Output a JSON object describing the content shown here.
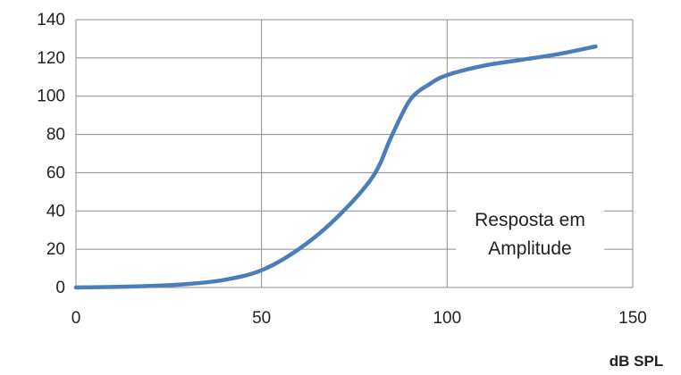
{
  "chart_data": {
    "type": "line",
    "title": "",
    "xlabel": "dB SPL",
    "ylabel": "",
    "xlim": [
      0,
      150
    ],
    "ylim": [
      0,
      140
    ],
    "x_ticks": [
      0,
      50,
      100,
      150
    ],
    "y_ticks": [
      0,
      20,
      40,
      60,
      80,
      100,
      120,
      140
    ],
    "grid": "on",
    "annotation": [
      "Resposta em",
      "Amplitude"
    ],
    "series": [
      {
        "color": "#4a7ebb",
        "x": [
          0,
          10,
          20,
          30,
          40,
          50,
          60,
          70,
          80,
          85,
          90,
          95,
          100,
          110,
          120,
          130,
          140
        ],
        "y": [
          0,
          0.3,
          0.8,
          1.8,
          4,
          9,
          20,
          36,
          58,
          79,
          98,
          106,
          111,
          116,
          119,
          122,
          126
        ]
      }
    ]
  }
}
